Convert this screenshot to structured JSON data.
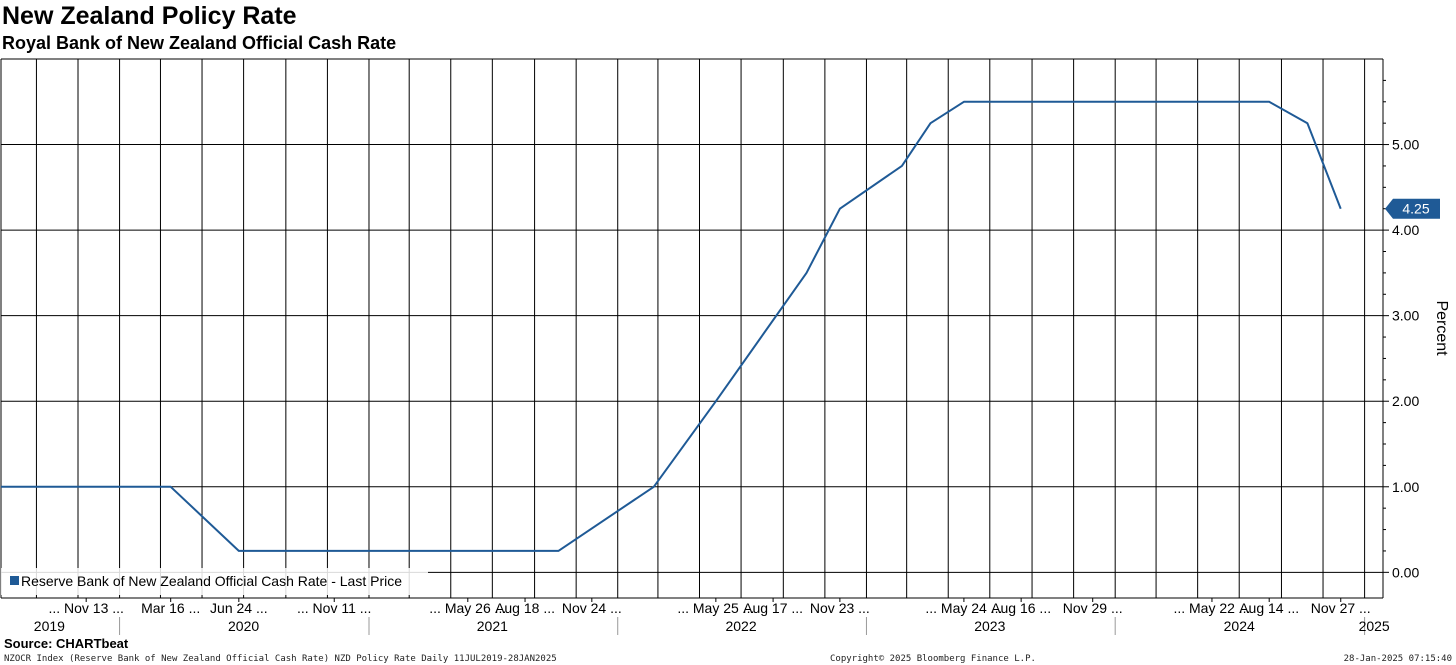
{
  "title": "New Zealand Policy Rate",
  "subtitle": "Royal Bank of New Zealand Official Cash Rate",
  "source": "Source: CHARTbeat",
  "footer": {
    "left": "NZOCR Index (Reserve Bank of New Zealand Official Cash Rate) NZD Policy Rate  Daily 11JUL2019-28JAN2025",
    "center": "Copyright© 2025 Bloomberg Finance L.P.",
    "right": "28-Jan-2025 07:15:40"
  },
  "colors": {
    "line": "#1f5a96",
    "grid": "#000000",
    "last_tag_bg": "#1f5a96",
    "last_tag_text": "#ffffff"
  },
  "chart_data": {
    "type": "line",
    "title": "New Zealand Policy Rate",
    "subtitle": "Royal Bank of New Zealand Official Cash Rate",
    "ylabel": "Percent",
    "xlabel": "",
    "ylim": [
      -0.3,
      6.0
    ],
    "xlim": [
      "2019-07-11",
      "2025-01-28"
    ],
    "yticks": [
      0.0,
      1.0,
      2.0,
      3.0,
      4.0,
      5.0
    ],
    "ytick_labels": [
      "0.00",
      "1.00",
      "2.00",
      "3.00",
      "4.00",
      "5.00"
    ],
    "grid": true,
    "legend_position": "bottom-left",
    "last_value_label": "4.25",
    "x_tick_labels": [
      {
        "date": "2019-11-13",
        "label": "... Nov 13 ..."
      },
      {
        "date": "2020-03-16",
        "label": "Mar 16 ..."
      },
      {
        "date": "2020-06-24",
        "label": "Jun 24 ..."
      },
      {
        "date": "2020-11-11",
        "label": "... Nov 11 ..."
      },
      {
        "date": "2021-05-26",
        "label": "... May 26 ..."
      },
      {
        "date": "2021-08-18",
        "label": "Aug 18 ..."
      },
      {
        "date": "2021-11-24",
        "label": "Nov 24 ..."
      },
      {
        "date": "2022-05-25",
        "label": "... May 25 ..."
      },
      {
        "date": "2022-08-17",
        "label": "Aug 17 ..."
      },
      {
        "date": "2022-11-23",
        "label": "Nov 23 ..."
      },
      {
        "date": "2023-05-24",
        "label": "... May 24 ..."
      },
      {
        "date": "2023-08-16",
        "label": "Aug 16 ..."
      },
      {
        "date": "2023-11-29",
        "label": "Nov 29 ..."
      },
      {
        "date": "2024-05-22",
        "label": "... May 22 ..."
      },
      {
        "date": "2024-08-14",
        "label": "Aug 14 ..."
      },
      {
        "date": "2024-11-27",
        "label": "Nov 27 ..."
      }
    ],
    "year_labels": [
      {
        "year": "2019",
        "mid": "2019-09-20"
      },
      {
        "year": "2020",
        "mid": "2020-07-01"
      },
      {
        "year": "2021",
        "mid": "2021-07-01"
      },
      {
        "year": "2022",
        "mid": "2022-07-01"
      },
      {
        "year": "2023",
        "mid": "2023-07-01"
      },
      {
        "year": "2024",
        "mid": "2024-07-01"
      },
      {
        "year": "2025",
        "mid": "2025-01-15"
      }
    ],
    "year_boundaries": [
      "2020-01-01",
      "2021-01-01",
      "2022-01-01",
      "2023-01-01",
      "2024-01-01",
      "2025-01-01"
    ],
    "series": [
      {
        "name": "Reserve Bank of New Zealand Official Cash Rate - Last Price",
        "points": [
          [
            "2019-07-11",
            1.0
          ],
          [
            "2020-03-16",
            1.0
          ],
          [
            "2020-06-24",
            0.25
          ],
          [
            "2021-10-06",
            0.25
          ],
          [
            "2022-02-23",
            1.0
          ],
          [
            "2022-05-25",
            2.0
          ],
          [
            "2022-10-05",
            3.5
          ],
          [
            "2022-11-23",
            4.25
          ],
          [
            "2023-02-22",
            4.75
          ],
          [
            "2023-04-05",
            5.25
          ],
          [
            "2023-05-24",
            5.5
          ],
          [
            "2024-08-14",
            5.5
          ],
          [
            "2024-10-09",
            5.25
          ],
          [
            "2024-11-27",
            4.25
          ]
        ]
      }
    ]
  }
}
